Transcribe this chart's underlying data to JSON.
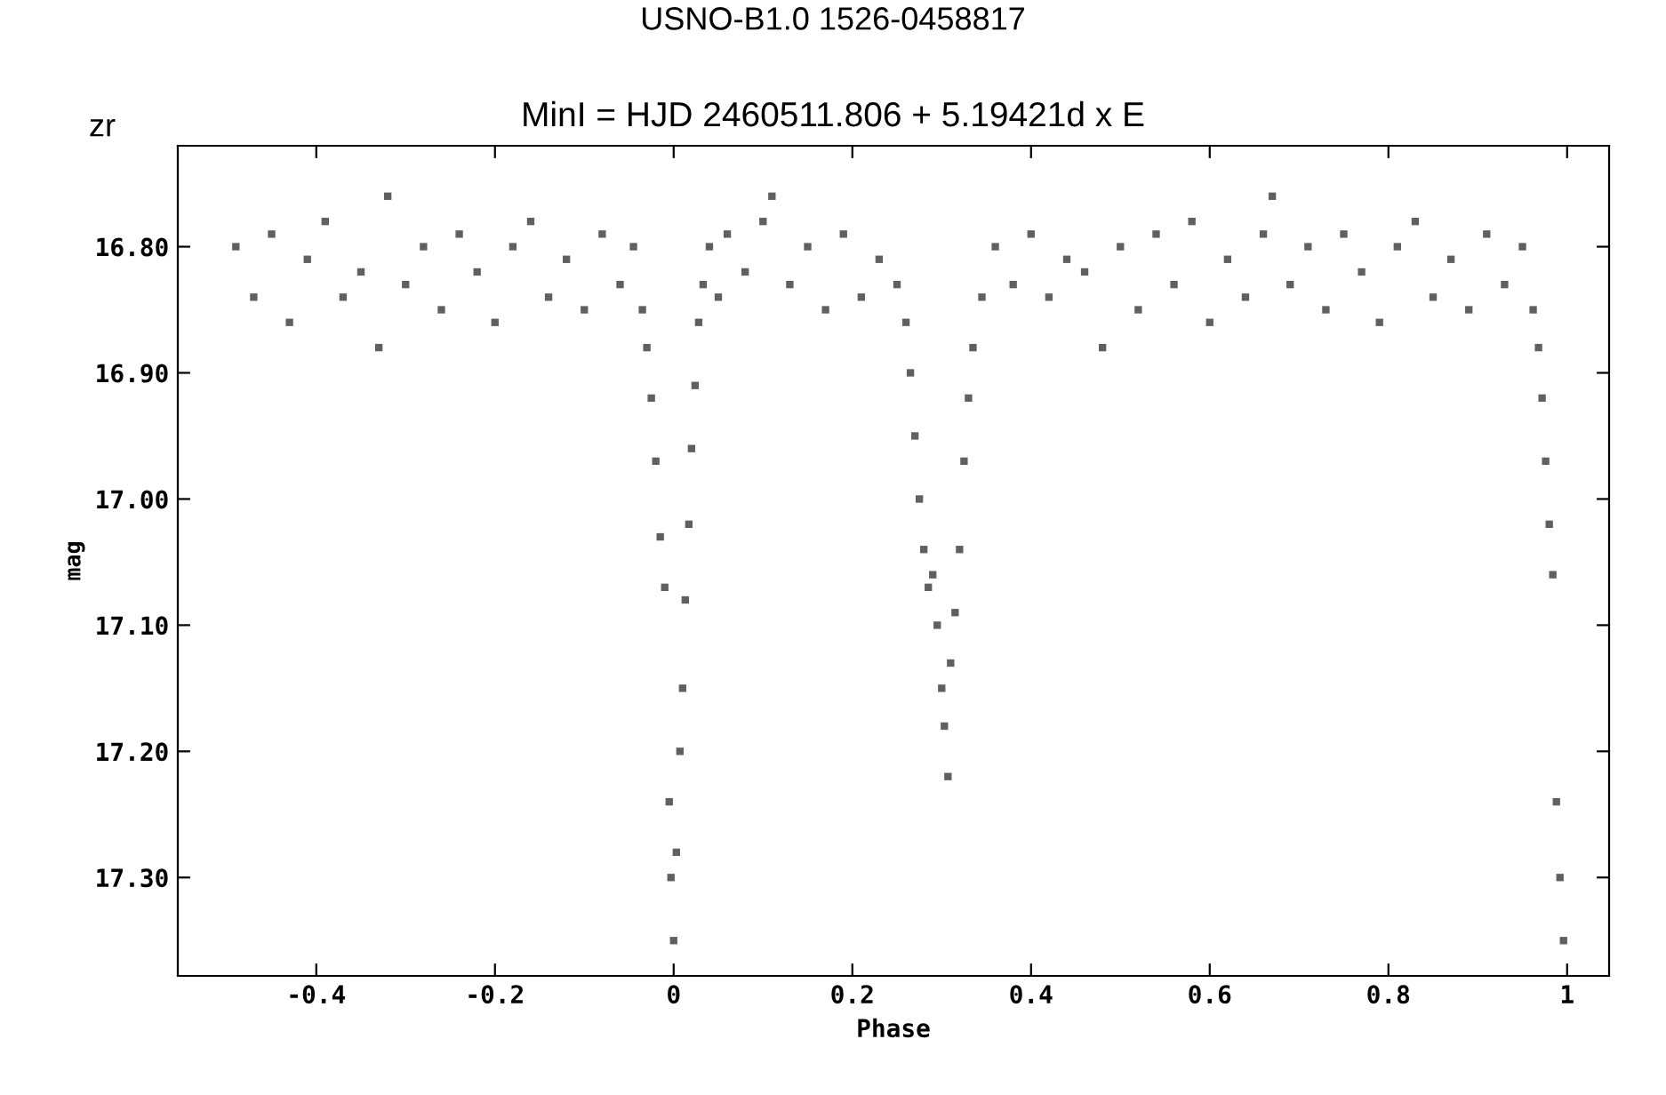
{
  "chart_data": {
    "type": "scatter",
    "title": "USNO-B1.0 1526-0458817",
    "subtitle": "MinI = HJD 2460511.806 + 5.19421d x E",
    "xlabel": "Phase",
    "ylabel": "mag",
    "annotations": [
      "zr"
    ],
    "xlim": [
      -0.555,
      1.047
    ],
    "ylim": [
      17.378,
      16.72
    ],
    "xticks": [
      {
        "value": -0.4,
        "label": "-0.4"
      },
      {
        "value": -0.2,
        "label": "-0.2"
      },
      0,
      {
        "value": 0.2,
        "label": "0.2"
      },
      {
        "value": 0.4,
        "label": "0.4"
      },
      {
        "value": 0.6,
        "label": "0.6"
      },
      {
        "value": 0.8,
        "label": "0.8"
      },
      1
    ],
    "yticks": [
      {
        "value": 16.8,
        "label": "16.80"
      },
      {
        "value": 16.9,
        "label": "16.90"
      },
      {
        "value": 17.0,
        "label": "17.00"
      },
      {
        "value": 17.1,
        "label": "17.10"
      },
      {
        "value": 17.2,
        "label": "17.20"
      },
      {
        "value": 17.3,
        "label": "17.30"
      }
    ],
    "grid": false,
    "legend": false,
    "marker": "square",
    "series": [
      {
        "color": "#606060",
        "x": [
          -0.49,
          -0.47,
          -0.45,
          -0.43,
          -0.41,
          -0.39,
          -0.37,
          -0.35,
          -0.33,
          -0.32,
          -0.3,
          -0.28,
          -0.26,
          -0.24,
          -0.22,
          -0.2,
          -0.18,
          -0.16,
          -0.14,
          -0.12,
          -0.1,
          -0.08,
          -0.06,
          -0.045,
          -0.035,
          -0.03,
          -0.025,
          -0.02,
          -0.015,
          -0.01,
          -0.005,
          -0.003,
          0.0,
          0.003,
          0.007,
          0.01,
          0.013,
          0.017,
          0.02,
          0.024,
          0.028,
          0.033,
          0.04,
          0.05,
          0.06,
          0.08,
          0.1,
          0.11,
          0.13,
          0.15,
          0.17,
          0.19,
          0.21,
          0.23,
          0.25,
          0.26,
          0.265,
          0.27,
          0.275,
          0.28,
          0.285,
          0.29,
          0.295,
          0.3,
          0.303,
          0.307,
          0.31,
          0.315,
          0.32,
          0.325,
          0.33,
          0.335,
          0.345,
          0.36,
          0.38,
          0.4,
          0.42,
          0.44,
          0.46,
          0.48,
          0.5,
          0.52,
          0.54,
          0.56,
          0.58,
          0.6,
          0.62,
          0.64,
          0.66,
          0.67,
          0.69,
          0.71,
          0.73,
          0.75,
          0.77,
          0.79,
          0.81,
          0.83,
          0.85,
          0.87,
          0.89,
          0.91,
          0.93,
          0.95,
          0.962,
          0.968,
          0.972,
          0.976,
          0.98,
          0.984,
          0.988,
          0.992,
          0.996
        ],
        "values": [
          16.8,
          16.84,
          16.79,
          16.86,
          16.81,
          16.78,
          16.84,
          16.82,
          16.88,
          16.76,
          16.83,
          16.8,
          16.85,
          16.79,
          16.82,
          16.86,
          16.8,
          16.78,
          16.84,
          16.81,
          16.85,
          16.79,
          16.83,
          16.8,
          16.85,
          16.88,
          16.92,
          16.97,
          17.03,
          17.07,
          17.24,
          17.3,
          17.35,
          17.28,
          17.2,
          17.15,
          17.08,
          17.02,
          16.96,
          16.91,
          16.86,
          16.83,
          16.8,
          16.84,
          16.79,
          16.82,
          16.78,
          16.76,
          16.83,
          16.8,
          16.85,
          16.79,
          16.84,
          16.81,
          16.83,
          16.86,
          16.9,
          16.95,
          17.0,
          17.04,
          17.07,
          17.06,
          17.1,
          17.15,
          17.18,
          17.22,
          17.13,
          17.09,
          17.04,
          16.97,
          16.92,
          16.88,
          16.84,
          16.8,
          16.83,
          16.79,
          16.84,
          16.81,
          16.82,
          16.88,
          16.8,
          16.85,
          16.79,
          16.83,
          16.78,
          16.86,
          16.81,
          16.84,
          16.79,
          16.76,
          16.83,
          16.8,
          16.85,
          16.79,
          16.82,
          16.86,
          16.8,
          16.78,
          16.84,
          16.81,
          16.85,
          16.79,
          16.83,
          16.8,
          16.85,
          16.88,
          16.92,
          16.97,
          17.02,
          17.06,
          17.24,
          17.3,
          17.35
        ]
      }
    ]
  }
}
